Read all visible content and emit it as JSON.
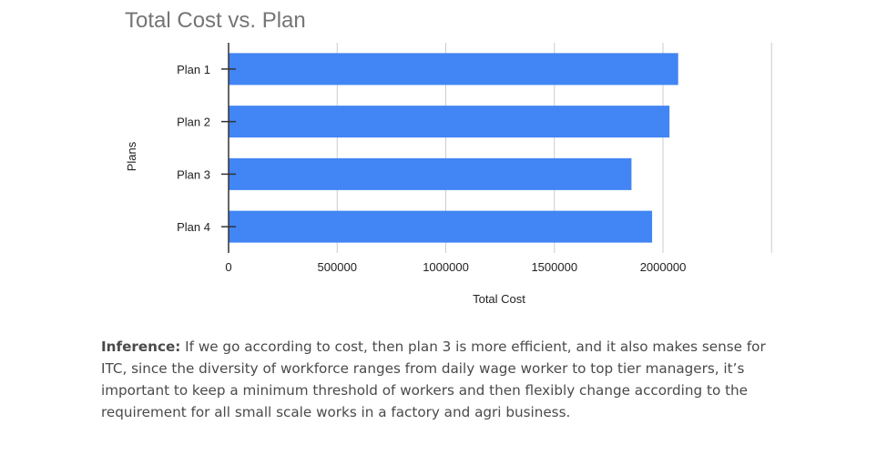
{
  "chart_data": {
    "type": "bar",
    "orientation": "horizontal",
    "title": "Total Cost vs. Plan",
    "xlabel": "Total Cost",
    "ylabel": "Plans",
    "categories": [
      "Plan 1",
      "Plan 2",
      "Plan 3",
      "Plan 4"
    ],
    "values": [
      2070000,
      2030000,
      1855000,
      1950000
    ],
    "xlim": [
      0,
      2500000
    ],
    "xticks": [
      0,
      500000,
      1000000,
      1500000,
      2000000
    ],
    "xtick_labels": [
      "0",
      "500000",
      "1000000",
      "1500000",
      "2000000"
    ],
    "grid": true,
    "legend": "none",
    "bar_color": "#4285F4"
  },
  "inference": {
    "label": "Inference:",
    "text": " If we go according to cost, then plan 3 is more efficient, and it also makes sense for ITC, since the diversity of workforce ranges from daily wage worker to top tier managers, it’s important to keep a minimum threshold of workers and then flexibly change according to the requirement for all small scale works in a factory and agri business."
  }
}
